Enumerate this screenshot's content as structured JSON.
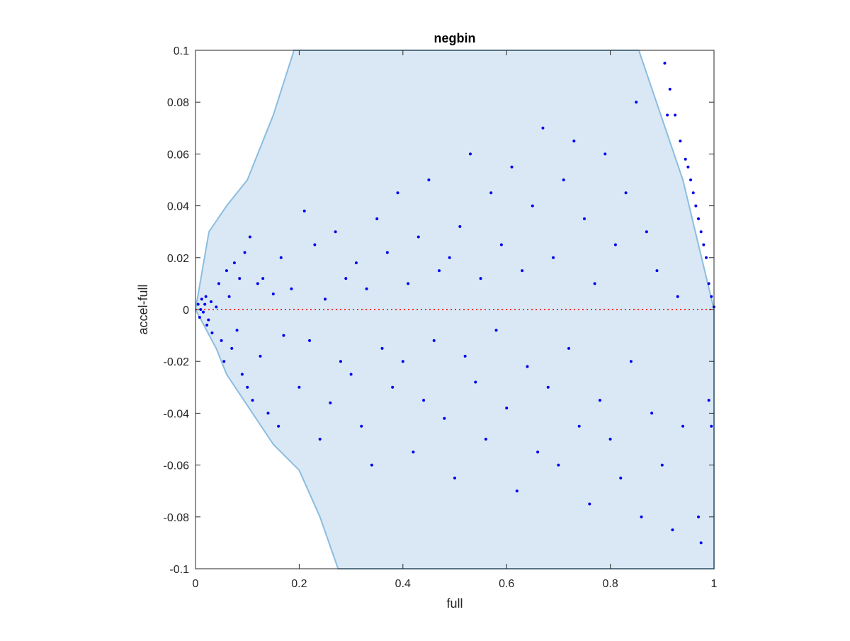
{
  "chart_data": {
    "type": "scatter",
    "title": "negbin",
    "xlabel": "full",
    "ylabel": "accel-full",
    "xlim": [
      0,
      1
    ],
    "ylim": [
      -0.1,
      0.1
    ],
    "xticks": [
      0,
      0.2,
      0.4,
      0.6,
      0.8,
      1
    ],
    "xtick_labels": [
      "0",
      "0.2",
      "0.4",
      "0.6",
      "0.8",
      "1"
    ],
    "yticks": [
      -0.1,
      -0.08,
      -0.06,
      -0.04,
      -0.02,
      0,
      0.02,
      0.04,
      0.06,
      0.08,
      0.1
    ],
    "ytick_labels": [
      "-0.1",
      "-0.08",
      "-0.06",
      "-0.04",
      "-0.02",
      "0",
      "0.02",
      "0.04",
      "0.06",
      "0.08",
      "0.1"
    ],
    "grid": false,
    "reference_line": {
      "y": 0,
      "style": "dotted",
      "color": "#ff3333"
    },
    "region": {
      "fill": "#d9e8f4",
      "edge": "#8bbde0",
      "outline": [
        [
          0,
          0
        ],
        [
          0.026,
          0.03
        ],
        [
          0.06,
          0.04
        ],
        [
          0.1,
          0.05
        ],
        [
          0.15,
          0.075
        ],
        [
          0.19,
          0.1
        ],
        [
          0.855,
          0.1
        ],
        [
          0.94,
          0.05
        ],
        [
          1.0,
          0.0
        ],
        [
          1.0,
          -0.1
        ],
        [
          0.275,
          -0.1
        ],
        [
          0.24,
          -0.08
        ],
        [
          0.2,
          -0.062
        ],
        [
          0.15,
          -0.052
        ],
        [
          0.11,
          -0.04
        ],
        [
          0.06,
          -0.025
        ],
        [
          0.04,
          -0.015
        ],
        [
          0.0,
          0.0
        ]
      ]
    },
    "marker_color": "#0000ee",
    "series": [
      {
        "points": [
          [
            0.005,
            0.002
          ],
          [
            0.008,
            -0.003
          ],
          [
            0.012,
            0.004
          ],
          [
            0.015,
            -0.001
          ],
          [
            0.01,
            0.0
          ],
          [
            0.02,
            0.005
          ],
          [
            0.025,
            -0.004
          ],
          [
            0.018,
            0.002
          ],
          [
            0.022,
            -0.006
          ],
          [
            0.03,
            0.003
          ],
          [
            0.04,
            0.001
          ],
          [
            0.032,
            -0.009
          ],
          [
            0.045,
            0.01
          ],
          [
            0.05,
            -0.012
          ],
          [
            0.06,
            0.015
          ],
          [
            0.055,
            -0.02
          ],
          [
            0.065,
            0.005
          ],
          [
            0.07,
            -0.015
          ],
          [
            0.075,
            0.018
          ],
          [
            0.08,
            -0.008
          ],
          [
            0.085,
            0.012
          ],
          [
            0.09,
            -0.025
          ],
          [
            0.095,
            0.022
          ],
          [
            0.1,
            -0.03
          ],
          [
            0.105,
            0.028
          ],
          [
            0.11,
            -0.035
          ],
          [
            0.12,
            0.01
          ],
          [
            0.125,
            -0.018
          ],
          [
            0.13,
            0.012
          ],
          [
            0.14,
            -0.04
          ],
          [
            0.15,
            0.006
          ],
          [
            0.16,
            -0.045
          ],
          [
            0.165,
            0.02
          ],
          [
            0.17,
            -0.01
          ],
          [
            0.185,
            0.008
          ],
          [
            0.2,
            -0.03
          ],
          [
            0.21,
            0.038
          ],
          [
            0.22,
            -0.012
          ],
          [
            0.23,
            0.025
          ],
          [
            0.24,
            -0.05
          ],
          [
            0.25,
            0.004
          ],
          [
            0.26,
            -0.036
          ],
          [
            0.27,
            0.03
          ],
          [
            0.28,
            -0.02
          ],
          [
            0.29,
            0.012
          ],
          [
            0.3,
            -0.025
          ],
          [
            0.31,
            0.018
          ],
          [
            0.32,
            -0.045
          ],
          [
            0.33,
            0.008
          ],
          [
            0.34,
            -0.06
          ],
          [
            0.35,
            0.035
          ],
          [
            0.36,
            -0.015
          ],
          [
            0.37,
            0.022
          ],
          [
            0.38,
            -0.03
          ],
          [
            0.39,
            0.045
          ],
          [
            0.4,
            -0.02
          ],
          [
            0.41,
            0.01
          ],
          [
            0.42,
            -0.055
          ],
          [
            0.43,
            0.028
          ],
          [
            0.44,
            -0.035
          ],
          [
            0.45,
            0.05
          ],
          [
            0.46,
            -0.012
          ],
          [
            0.47,
            0.015
          ],
          [
            0.48,
            -0.042
          ],
          [
            0.49,
            0.02
          ],
          [
            0.5,
            -0.065
          ],
          [
            0.51,
            0.032
          ],
          [
            0.52,
            -0.018
          ],
          [
            0.53,
            0.06
          ],
          [
            0.54,
            -0.028
          ],
          [
            0.55,
            0.012
          ],
          [
            0.56,
            -0.05
          ],
          [
            0.57,
            0.045
          ],
          [
            0.58,
            -0.008
          ],
          [
            0.59,
            0.025
          ],
          [
            0.6,
            -0.038
          ],
          [
            0.61,
            0.055
          ],
          [
            0.62,
            -0.07
          ],
          [
            0.63,
            0.015
          ],
          [
            0.64,
            -0.022
          ],
          [
            0.65,
            0.04
          ],
          [
            0.66,
            -0.055
          ],
          [
            0.67,
            0.07
          ],
          [
            0.68,
            -0.03
          ],
          [
            0.69,
            0.02
          ],
          [
            0.7,
            -0.06
          ],
          [
            0.71,
            0.05
          ],
          [
            0.72,
            -0.015
          ],
          [
            0.73,
            0.065
          ],
          [
            0.74,
            -0.045
          ],
          [
            0.75,
            0.035
          ],
          [
            0.76,
            -0.075
          ],
          [
            0.77,
            0.01
          ],
          [
            0.78,
            -0.035
          ],
          [
            0.79,
            0.06
          ],
          [
            0.8,
            -0.05
          ],
          [
            0.81,
            0.025
          ],
          [
            0.82,
            -0.065
          ],
          [
            0.83,
            0.045
          ],
          [
            0.84,
            -0.02
          ],
          [
            0.85,
            0.08
          ],
          [
            0.86,
            -0.08
          ],
          [
            0.87,
            0.03
          ],
          [
            0.88,
            -0.04
          ],
          [
            0.89,
            0.015
          ],
          [
            0.9,
            -0.06
          ],
          [
            0.91,
            0.075
          ],
          [
            0.92,
            -0.085
          ],
          [
            0.93,
            0.005
          ],
          [
            0.94,
            -0.045
          ],
          [
            0.95,
            0.055
          ],
          [
            0.96,
            0.045
          ],
          [
            0.97,
            0.035
          ],
          [
            0.98,
            0.025
          ],
          [
            0.99,
            0.01
          ],
          [
            0.995,
            0.005
          ],
          [
            1.0,
            0.001
          ],
          [
            0.905,
            0.095
          ],
          [
            0.915,
            0.085
          ],
          [
            0.925,
            0.075
          ],
          [
            0.935,
            0.065
          ],
          [
            0.945,
            0.058
          ],
          [
            0.955,
            0.05
          ],
          [
            0.965,
            0.04
          ],
          [
            0.975,
            0.03
          ],
          [
            0.985,
            0.02
          ],
          [
            0.99,
            -0.035
          ],
          [
            0.995,
            -0.045
          ],
          [
            0.97,
            -0.08
          ],
          [
            0.975,
            -0.09
          ]
        ]
      }
    ]
  }
}
